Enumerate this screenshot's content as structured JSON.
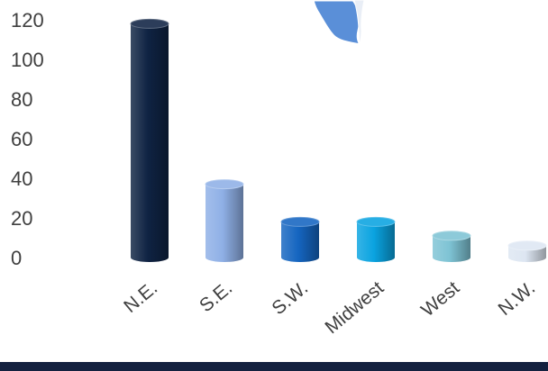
{
  "chart_data": {
    "type": "bar",
    "style": "3d-cylinder",
    "categories": [
      "N.E.",
      "S.E.",
      "S.W.",
      "Midwest",
      "West",
      "N.W."
    ],
    "values": [
      118,
      37,
      18,
      18,
      11,
      6
    ],
    "ylim": [
      0,
      120
    ],
    "yticks": [
      "0",
      "20",
      "40",
      "60",
      "80",
      "100",
      "120"
    ],
    "grid": false,
    "legend": "none",
    "bar_colors": [
      "#0f2343",
      "#8fb0e6",
      "#1565c0",
      "#0aa3e0",
      "#7ec3d4",
      "#dde6f2"
    ],
    "title": "",
    "xlabel": "",
    "ylabel": ""
  },
  "decoration": {
    "map_fragment_icon": "us-map-fragment",
    "map_color": "#5a8fd8",
    "footer_band_color": "#14213f"
  }
}
